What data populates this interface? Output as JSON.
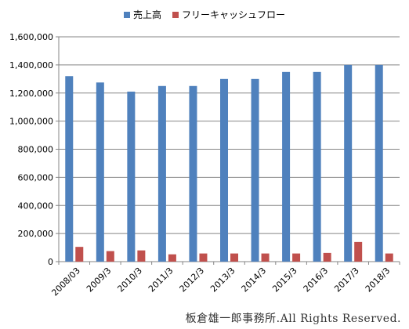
{
  "chart_data": {
    "type": "bar",
    "categories": [
      "2008/03",
      "2009/3",
      "2010/3",
      "2011/3",
      "2012/3",
      "2013/3",
      "2014/3",
      "2015/3",
      "2016/3",
      "2017/3",
      "2018/3"
    ],
    "series": [
      {
        "name": "売上高",
        "color": "#4F81BD",
        "values": [
          1320000,
          1275000,
          1210000,
          1250000,
          1250000,
          1300000,
          1300000,
          1350000,
          1350000,
          1400000,
          1400000
        ]
      },
      {
        "name": "フリーキャッシュフロー",
        "color": "#C0504D",
        "values": [
          105000,
          75000,
          80000,
          52000,
          58000,
          58000,
          58000,
          58000,
          62000,
          140000,
          58000
        ]
      }
    ],
    "ylim": [
      0,
      1600000
    ],
    "yticks": [
      0,
      200000,
      400000,
      600000,
      800000,
      1000000,
      1200000,
      1400000,
      1600000
    ],
    "ytick_labels": [
      "0",
      "200,000",
      "400,000",
      "600,000",
      "800,000",
      "1,000,000",
      "1,200,000",
      "1,400,000",
      "1,600,000"
    ],
    "grid": true,
    "legend_position": "top"
  },
  "copyright": "板倉雄一郎事務所.All Rights Reserved."
}
